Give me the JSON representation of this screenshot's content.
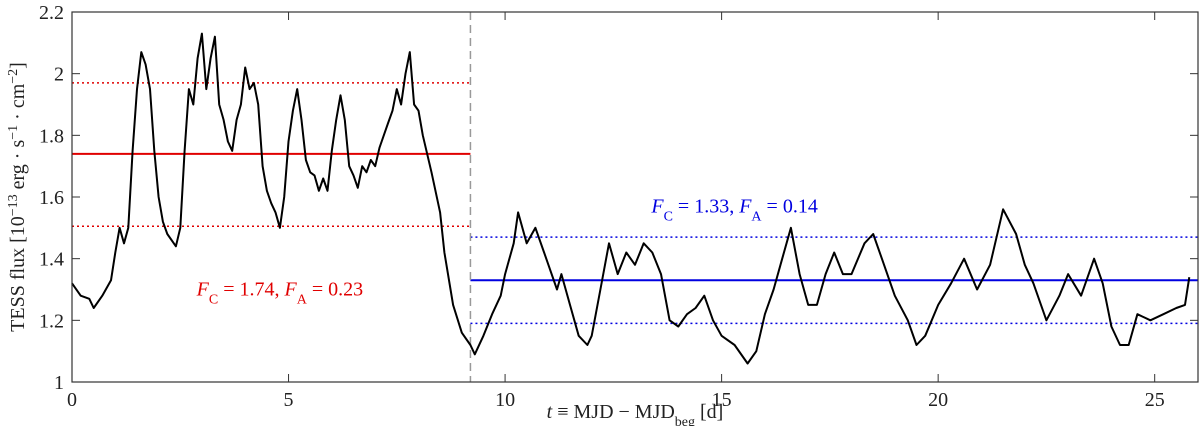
{
  "chart_data": {
    "type": "line",
    "x_label": [
      {
        "text": "t",
        "italic": true
      },
      {
        "text": " ≡ MJD − MJD"
      },
      {
        "text": "beg",
        "sub": true
      },
      {
        "text": " [d]"
      }
    ],
    "y_label": [
      {
        "text": "TESS flux [10"
      },
      {
        "text": "−13",
        "sup": true
      },
      {
        "text": " erg · s"
      },
      {
        "text": "−1",
        "sup": true
      },
      {
        "text": " · cm"
      },
      {
        "text": "−2",
        "sup": true
      },
      {
        "text": "]"
      }
    ],
    "xlim": [
      0,
      26
    ],
    "ylim": [
      1,
      2.2
    ],
    "xticks": [
      0,
      5,
      10,
      15,
      20,
      25
    ],
    "yticks": [
      1,
      1.2,
      1.4,
      1.6,
      1.8,
      2,
      2.2
    ],
    "x": [
      0,
      0.2,
      0.4,
      0.5,
      0.7,
      0.9,
      1.0,
      1.1,
      1.2,
      1.3,
      1.4,
      1.5,
      1.6,
      1.7,
      1.8,
      1.9,
      2.0,
      2.1,
      2.2,
      2.4,
      2.5,
      2.6,
      2.7,
      2.8,
      2.9,
      3.0,
      3.1,
      3.2,
      3.3,
      3.4,
      3.5,
      3.6,
      3.7,
      3.8,
      3.9,
      4.0,
      4.1,
      4.2,
      4.3,
      4.4,
      4.5,
      4.6,
      4.7,
      4.8,
      4.9,
      5.0,
      5.1,
      5.2,
      5.3,
      5.4,
      5.5,
      5.6,
      5.7,
      5.8,
      5.9,
      6.0,
      6.1,
      6.2,
      6.3,
      6.4,
      6.5,
      6.6,
      6.7,
      6.8,
      6.9,
      7.0,
      7.1,
      7.2,
      7.3,
      7.4,
      7.5,
      7.6,
      7.7,
      7.8,
      7.9,
      8.0,
      8.1,
      8.3,
      8.5,
      8.6,
      8.8,
      9.0,
      9.2,
      9.3,
      9.5,
      9.7,
      9.9,
      10.0,
      10.2,
      10.3,
      10.5,
      10.7,
      10.9,
      11.0,
      11.2,
      11.3,
      11.5,
      11.7,
      11.9,
      12.0,
      12.2,
      12.4,
      12.6,
      12.8,
      13.0,
      13.2,
      13.4,
      13.6,
      13.8,
      14.0,
      14.2,
      14.4,
      14.6,
      14.8,
      15.0,
      15.3,
      15.6,
      15.8,
      16.0,
      16.2,
      16.4,
      16.6,
      16.8,
      17.0,
      17.2,
      17.4,
      17.6,
      17.8,
      18.0,
      18.3,
      18.5,
      18.7,
      19.0,
      19.3,
      19.5,
      19.7,
      20.0,
      20.3,
      20.6,
      20.9,
      21.2,
      21.5,
      21.8,
      22.0,
      22.2,
      22.5,
      22.8,
      23.0,
      23.3,
      23.6,
      23.8,
      24.0,
      24.2,
      24.4,
      24.6,
      24.9,
      25.2,
      25.5,
      25.7,
      25.8
    ],
    "series": [
      {
        "color": "#000000",
        "values": [
          1.32,
          1.28,
          1.27,
          1.24,
          1.28,
          1.33,
          1.42,
          1.5,
          1.45,
          1.5,
          1.75,
          1.95,
          2.07,
          2.03,
          1.95,
          1.75,
          1.6,
          1.52,
          1.48,
          1.44,
          1.5,
          1.75,
          1.95,
          1.9,
          2.05,
          2.13,
          1.95,
          2.05,
          2.12,
          1.9,
          1.85,
          1.78,
          1.75,
          1.85,
          1.9,
          2.02,
          1.95,
          1.97,
          1.9,
          1.7,
          1.62,
          1.58,
          1.55,
          1.5,
          1.6,
          1.78,
          1.88,
          1.95,
          1.85,
          1.72,
          1.68,
          1.67,
          1.62,
          1.66,
          1.62,
          1.75,
          1.85,
          1.93,
          1.85,
          1.7,
          1.67,
          1.63,
          1.7,
          1.68,
          1.72,
          1.7,
          1.76,
          1.8,
          1.84,
          1.88,
          1.95,
          1.9,
          2.0,
          2.07,
          1.9,
          1.88,
          1.8,
          1.68,
          1.55,
          1.42,
          1.25,
          1.16,
          1.12,
          1.09,
          1.15,
          1.22,
          1.28,
          1.35,
          1.45,
          1.55,
          1.45,
          1.5,
          1.42,
          1.38,
          1.3,
          1.35,
          1.25,
          1.15,
          1.12,
          1.15,
          1.3,
          1.45,
          1.35,
          1.42,
          1.38,
          1.45,
          1.42,
          1.35,
          1.2,
          1.18,
          1.22,
          1.24,
          1.28,
          1.2,
          1.15,
          1.12,
          1.06,
          1.1,
          1.22,
          1.3,
          1.4,
          1.5,
          1.35,
          1.25,
          1.25,
          1.35,
          1.42,
          1.35,
          1.35,
          1.45,
          1.48,
          1.4,
          1.28,
          1.2,
          1.12,
          1.15,
          1.25,
          1.32,
          1.4,
          1.3,
          1.38,
          1.56,
          1.48,
          1.38,
          1.32,
          1.2,
          1.28,
          1.35,
          1.28,
          1.4,
          1.32,
          1.18,
          1.12,
          1.12,
          1.22,
          1.2,
          1.22,
          1.24,
          1.25,
          1.34
        ]
      }
    ],
    "reference_lines": [
      {
        "value": 1.74,
        "color": "#e00000",
        "style": "solid",
        "xrange": [
          0,
          9.2
        ]
      },
      {
        "value": 1.97,
        "color": "#e00000",
        "style": "dotted",
        "xrange": [
          0,
          9.2
        ]
      },
      {
        "value": 1.505,
        "color": "#e00000",
        "style": "dotted",
        "xrange": [
          0,
          9.2
        ]
      },
      {
        "value": 1.33,
        "color": "#0000e0",
        "style": "solid",
        "xrange": [
          9.2,
          26
        ]
      },
      {
        "value": 1.47,
        "color": "#0000e0",
        "style": "dotted",
        "xrange": [
          9.2,
          26
        ]
      },
      {
        "value": 1.19,
        "color": "#0000e0",
        "style": "dotted",
        "xrange": [
          9.2,
          26
        ]
      }
    ],
    "split_line": {
      "value": 9.2,
      "color": "#999999"
    },
    "annotations": [
      {
        "color": "#e00000",
        "segments": [
          {
            "text": "F",
            "italic": true
          },
          {
            "text": "C",
            "sub": true
          },
          {
            "text": " = 1.74, "
          },
          {
            "text": "F",
            "italic": true
          },
          {
            "text": "A",
            "sub": true
          },
          {
            "text": " = 0.23"
          }
        ]
      },
      {
        "color": "#0000e0",
        "segments": [
          {
            "text": "F",
            "italic": true
          },
          {
            "text": "C",
            "sub": true
          },
          {
            "text": " = 1.33, "
          },
          {
            "text": "F",
            "italic": true
          },
          {
            "text": "A",
            "sub": true
          },
          {
            "text": " = 0.14"
          }
        ]
      }
    ]
  }
}
